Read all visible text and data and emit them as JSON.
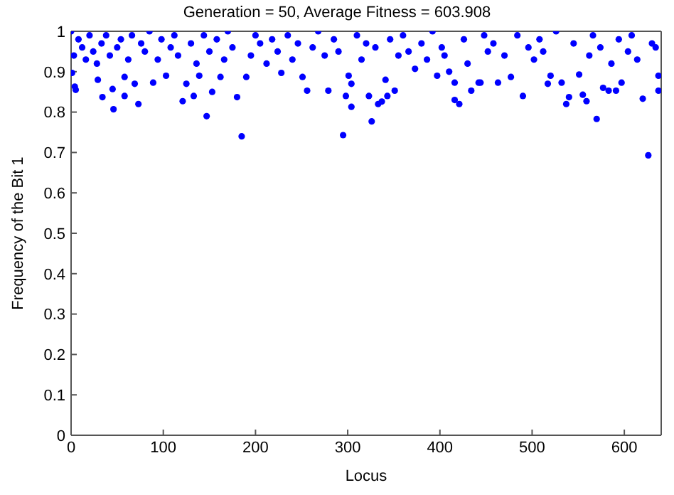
{
  "chart_data": {
    "type": "scatter",
    "title": "Generation = 50, Average Fitness = 603.908",
    "xlabel": "Locus",
    "ylabel": "Frequency of the Bit 1",
    "xlim": [
      0,
      640
    ],
    "xticks": [
      0,
      100,
      200,
      300,
      400,
      500,
      600
    ],
    "ylim": [
      0,
      1
    ],
    "yticks": [
      0,
      0.1,
      0.2,
      0.3,
      0.4,
      0.5,
      0.6,
      0.7,
      0.8,
      0.9,
      1
    ],
    "legend": false,
    "marker": "circle",
    "series": [
      {
        "color": "#0000ff",
        "x": [
          1,
          4,
          5,
          29,
          34,
          45,
          46,
          58,
          58,
          69,
          73,
          89,
          103,
          121,
          125,
          133,
          139,
          147,
          153,
          162,
          180,
          185,
          190,
          228,
          251,
          256,
          279,
          295,
          298,
          301,
          304,
          304,
          323,
          326,
          333,
          337,
          341,
          343,
          351,
          373,
          397,
          410,
          416,
          416,
          421,
          434,
          442,
          444,
          463,
          477,
          490,
          517,
          520,
          532,
          537,
          540,
          551,
          555,
          559,
          570,
          577,
          583,
          591,
          597,
          620,
          626,
          637,
          637,
          0,
          3,
          8,
          12,
          16,
          20,
          24,
          28,
          33,
          38,
          42,
          50,
          54,
          62,
          66,
          76,
          80,
          85,
          94,
          98,
          108,
          112,
          116,
          130,
          136,
          144,
          150,
          158,
          166,
          170,
          175,
          195,
          200,
          205,
          212,
          218,
          224,
          235,
          240,
          246,
          262,
          268,
          275,
          285,
          290,
          310,
          315,
          320,
          330,
          346,
          355,
          360,
          366,
          380,
          386,
          392,
          402,
          405,
          426,
          430,
          448,
          452,
          458,
          470,
          484,
          496,
          502,
          508,
          512,
          526,
          545,
          562,
          566,
          574,
          586,
          594,
          604,
          608,
          614,
          630,
          634
        ],
        "values": [
          0.897,
          0.863,
          0.855,
          0.88,
          0.837,
          0.857,
          0.807,
          0.84,
          0.887,
          0.87,
          0.82,
          0.873,
          0.89,
          0.827,
          0.87,
          0.84,
          0.89,
          0.79,
          0.85,
          0.887,
          0.837,
          0.74,
          0.887,
          0.897,
          0.887,
          0.853,
          0.853,
          0.743,
          0.84,
          0.89,
          0.87,
          0.813,
          0.84,
          0.777,
          0.82,
          0.826,
          0.88,
          0.84,
          0.853,
          0.907,
          0.89,
          0.9,
          0.873,
          0.83,
          0.82,
          0.853,
          0.873,
          0.873,
          0.873,
          0.887,
          0.84,
          0.87,
          0.89,
          0.873,
          0.82,
          0.837,
          0.893,
          0.843,
          0.827,
          0.783,
          0.86,
          0.853,
          0.853,
          0.873,
          0.833,
          0.693,
          0.853,
          0.89,
          1,
          0.94,
          0.98,
          0.96,
          0.93,
          0.99,
          0.95,
          0.92,
          0.97,
          0.99,
          0.94,
          0.96,
          0.98,
          0.93,
          0.99,
          0.97,
          0.95,
          1,
          0.93,
          0.98,
          0.96,
          0.99,
          0.94,
          0.97,
          0.92,
          0.99,
          0.95,
          0.98,
          0.93,
          1,
          0.96,
          0.94,
          0.99,
          0.97,
          0.92,
          0.98,
          0.95,
          0.99,
          0.93,
          0.97,
          0.96,
          1,
          0.94,
          0.98,
          0.95,
          0.99,
          0.93,
          0.97,
          0.96,
          0.98,
          0.94,
          0.99,
          0.95,
          0.97,
          0.93,
          1,
          0.96,
          0.94,
          0.98,
          0.92,
          0.99,
          0.95,
          0.97,
          0.94,
          0.99,
          0.96,
          0.93,
          0.98,
          0.95,
          1,
          0.97,
          0.94,
          0.99,
          0.96,
          0.92,
          0.98,
          0.95,
          0.99,
          0.93,
          0.97,
          0.96
        ]
      }
    ]
  }
}
